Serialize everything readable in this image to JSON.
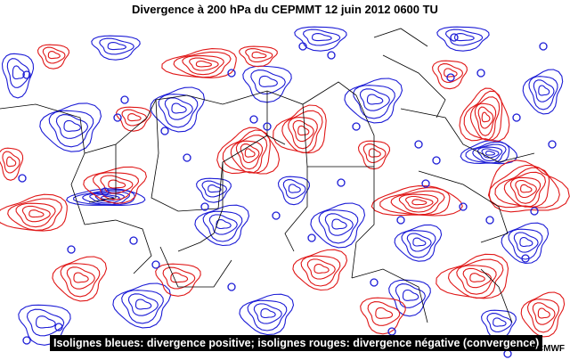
{
  "title": "Divergence à 200 hPa du CEPMMT 12 juin 2012 0600 TU",
  "legend": "Isolignes bleues: divergence positive; isolignes rouges: divergence négative (convergence)",
  "credit": "ECMWF",
  "colors": {
    "positive_divergence": "#1c1cd6",
    "negative_divergence": "#e01818",
    "borders": "#000000",
    "background": "#ffffff"
  }
}
